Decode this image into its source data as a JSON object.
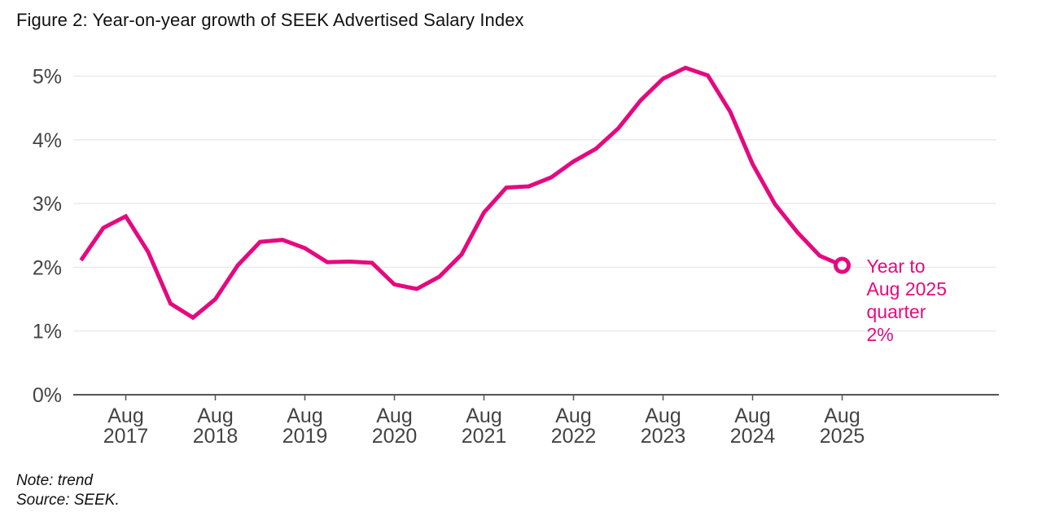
{
  "title": "Figure 2: Year-on-year growth of SEEK Advertised Salary Index",
  "notes": {
    "note": "Note: trend",
    "source": "Source: SEEK."
  },
  "colors": {
    "line": "#E5097F",
    "grid": "#ebebeb",
    "axis": "#555555",
    "tick_text": "#444444",
    "annotation": "#E5097F"
  },
  "chart_data": {
    "type": "line",
    "title": "Figure 2: Year-on-year growth of SEEK Advertised Salary Index",
    "xlabel": "",
    "ylabel": "",
    "ylim": [
      0,
      5
    ],
    "yticks": [
      0,
      1,
      2,
      3,
      4,
      5
    ],
    "ytick_labels": [
      "0%",
      "1%",
      "2%",
      "3%",
      "4%",
      "5%"
    ],
    "grid": true,
    "legend": "none",
    "x": [
      "Feb 2017",
      "May 2017",
      "Aug 2017",
      "Nov 2017",
      "Feb 2018",
      "May 2018",
      "Aug 2018",
      "Nov 2018",
      "Feb 2019",
      "May 2019",
      "Aug 2019",
      "Nov 2019",
      "Feb 2020",
      "May 2020",
      "Aug 2020",
      "Nov 2020",
      "Feb 2021",
      "May 2021",
      "Aug 2021",
      "Nov 2021",
      "Feb 2022",
      "May 2022",
      "Aug 2022",
      "Nov 2022",
      "Feb 2023",
      "May 2023",
      "Aug 2023",
      "Nov 2023",
      "Feb 2024",
      "May 2024",
      "Aug 2024",
      "Nov 2024",
      "Feb 2025",
      "May 2025",
      "Aug 2025"
    ],
    "xticks": [
      {
        "index": 2,
        "line1": "Aug",
        "line2": "2017"
      },
      {
        "index": 6,
        "line1": "Aug",
        "line2": "2018"
      },
      {
        "index": 10,
        "line1": "Aug",
        "line2": "2019"
      },
      {
        "index": 14,
        "line1": "Aug",
        "line2": "2020"
      },
      {
        "index": 18,
        "line1": "Aug",
        "line2": "2021"
      },
      {
        "index": 22,
        "line1": "Aug",
        "line2": "2022"
      },
      {
        "index": 26,
        "line1": "Aug",
        "line2": "2023"
      },
      {
        "index": 30,
        "line1": "Aug",
        "line2": "2024"
      },
      {
        "index": 34,
        "line1": "Aug",
        "line2": "2025"
      }
    ],
    "x_range_quarters": [
      -0.35,
      40.2
    ],
    "series": [
      {
        "name": "Year-on-year growth (trend)",
        "unit": "%",
        "values": [
          2.11,
          2.62,
          2.8,
          2.24,
          1.43,
          1.21,
          1.5,
          2.03,
          2.4,
          2.43,
          2.3,
          2.08,
          2.09,
          2.07,
          1.73,
          1.66,
          1.85,
          2.2,
          2.86,
          3.25,
          3.27,
          3.41,
          3.66,
          3.86,
          4.18,
          4.62,
          4.96,
          5.13,
          5.01,
          4.44,
          3.62,
          2.99,
          2.55,
          2.18,
          2.03
        ]
      }
    ],
    "annotation": {
      "index": 34,
      "lines": [
        "Year to",
        "Aug 2025",
        "quarter",
        "2%"
      ]
    }
  }
}
